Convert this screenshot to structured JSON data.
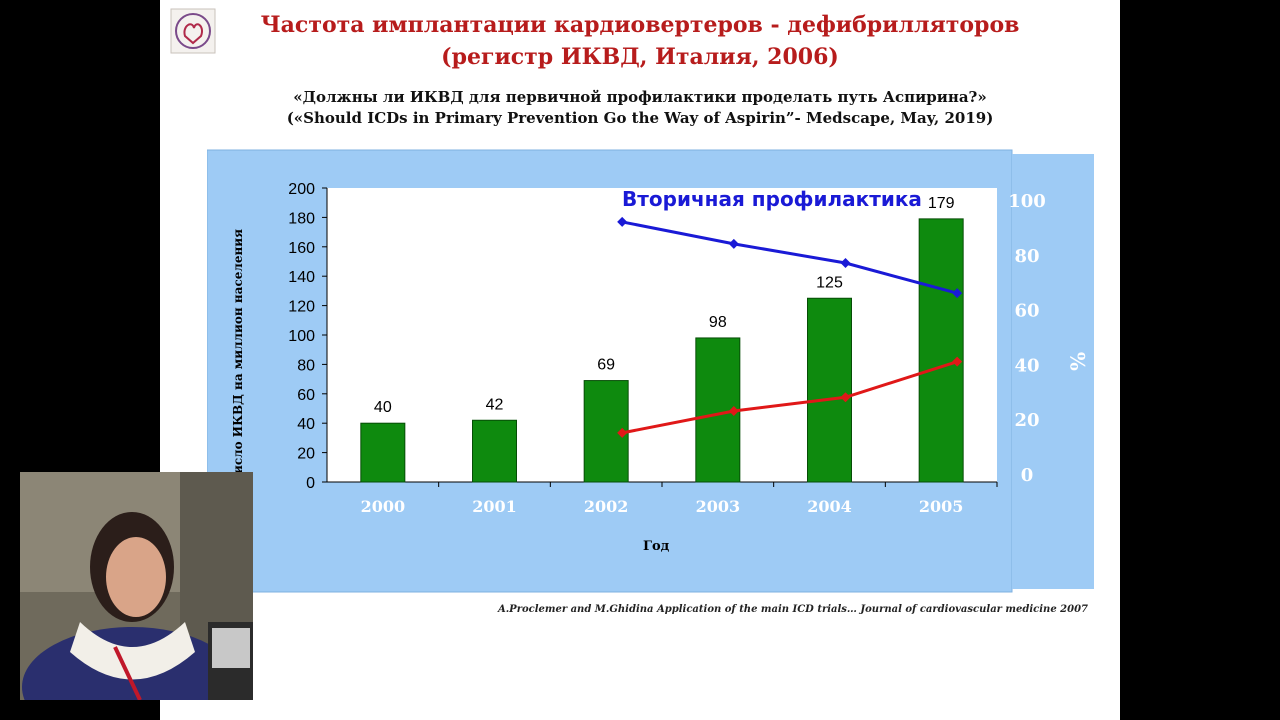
{
  "slide": {
    "title_line1": "Частота имплантации кардиовертеров - дефибрилляторов",
    "title_line2": "(регистр ИКВД, Италия, 2006)",
    "subtitle_ru": "«Должны ли ИКВД для первичной профилактики проделать путь Аспирина?»",
    "subtitle_en": "(«Should ICDs in Primary Prevention Go the Way of Aspirin”- Medscape, May, 2019)",
    "citation": "A.Proclemer and M.Ghidina Application of the main ICD trials… Journal of cardiovascular medicine 2007",
    "colors": {
      "title": "#b71c1c",
      "panel": "#9ecbf5",
      "bar": "#0e8a0e",
      "secondary_line": "#1a1ad6",
      "primary_line": "#e01818"
    }
  },
  "chart_data": {
    "type": "bar",
    "categories": [
      "2000",
      "2001",
      "2002",
      "2003",
      "2004",
      "2005"
    ],
    "series": [
      {
        "values": [
          40,
          42,
          69,
          98,
          125,
          179
        ],
        "data_labels": [
          "40",
          "42",
          "69",
          "98",
          "125",
          "179"
        ]
      }
    ],
    "line_series": [
      {
        "name": "Вторичная профилактика",
        "axis": "right",
        "x": [
          "2002",
          "2003",
          "2004",
          "2005"
        ],
        "values": [
          92,
          84,
          77,
          66
        ]
      },
      {
        "axis": "right",
        "x": [
          "2002",
          "2003",
          "2004",
          "2005"
        ],
        "values": [
          15,
          23,
          28,
          41
        ]
      }
    ],
    "xlabel": "Год",
    "ylabel": "Число ИКВД на миллион населения",
    "ylim": [
      0,
      200
    ],
    "yticks": [
      0,
      20,
      40,
      60,
      80,
      100,
      120,
      140,
      160,
      180,
      200
    ],
    "y2label": "%",
    "y2ticks": [
      "100",
      "80",
      "60",
      "40",
      "20",
      "0"
    ],
    "grid": false,
    "legend": "none"
  }
}
